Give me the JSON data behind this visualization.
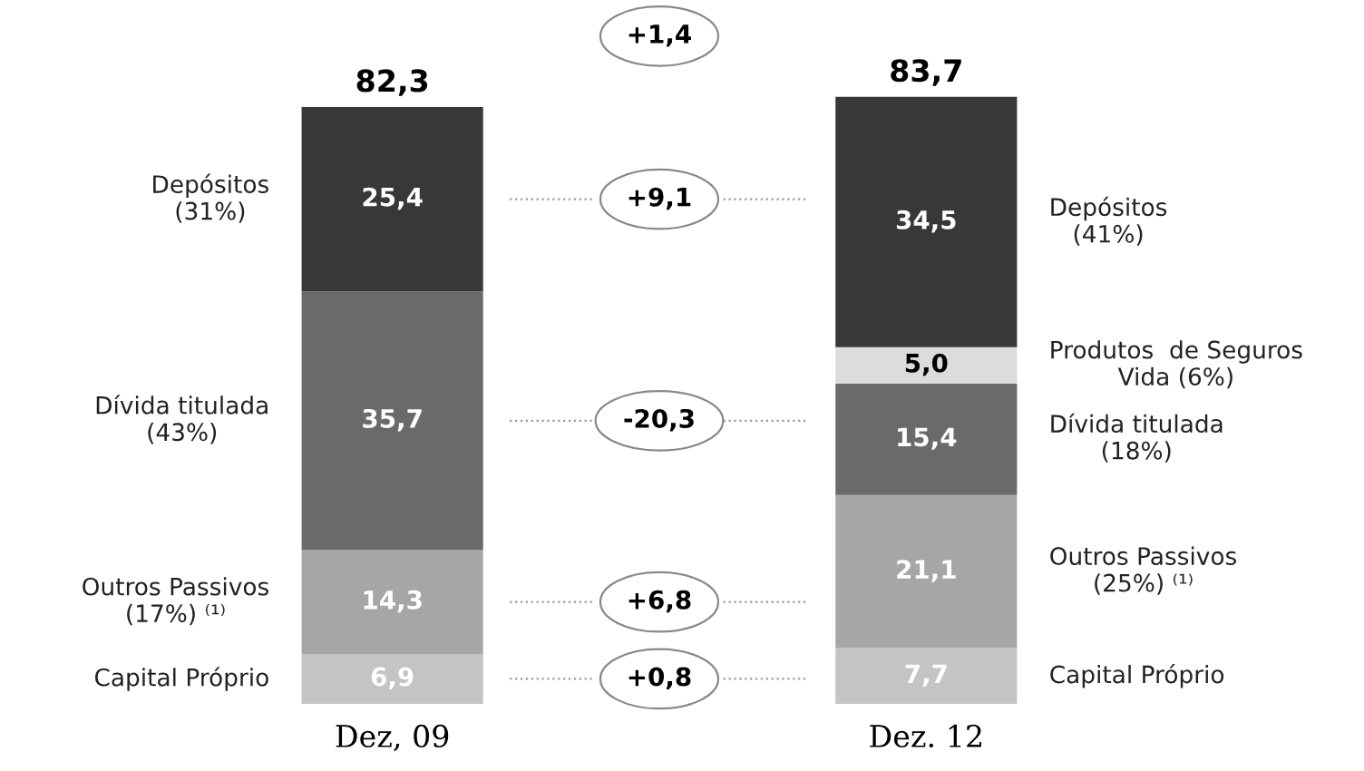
{
  "chart_data": {
    "type": "bar",
    "stacked": true,
    "tick_labels": "x",
    "categories": [
      "Dez, 09",
      "Dez. 12"
    ],
    "series": [
      {
        "color": "#c4c4c4",
        "values": [
          6.9,
          7.7
        ],
        "value_labels": [
          "6,9",
          "7,7"
        ]
      },
      {
        "color": "#a6a6a6",
        "values": [
          14.3,
          21.1
        ],
        "value_labels": [
          "14,3",
          "21,1"
        ]
      },
      {
        "color": "#6a6a6a",
        "values": [
          35.7,
          15.4
        ],
        "value_labels": [
          "35,7",
          "15,4"
        ]
      },
      {
        "color": "#dcdcdc",
        "values": [
          null,
          5.0
        ],
        "value_labels": [
          null,
          "5,0"
        ]
      },
      {
        "color": "#383838",
        "values": [
          25.4,
          34.5
        ],
        "value_labels": [
          "25,4",
          "34,5"
        ]
      }
    ],
    "totals": [
      "82,3",
      "83,7"
    ],
    "annotations": [
      "Capital Próprio",
      "Outros Passivos\n(17%) ⁽¹⁾",
      "Dívida titulada\n(43%)",
      "Depósitos\n(31%)",
      "Capital Próprio",
      "Outros Passivos\n(25%) ⁽¹⁾",
      "Dívida titulada\n(18%)",
      "Produtos  de Seguros\nVida (6%)",
      "Depósitos\n(41%)",
      "+1,4",
      "+0,8",
      "+6,8",
      "-20,3",
      "+9,1"
    ]
  }
}
